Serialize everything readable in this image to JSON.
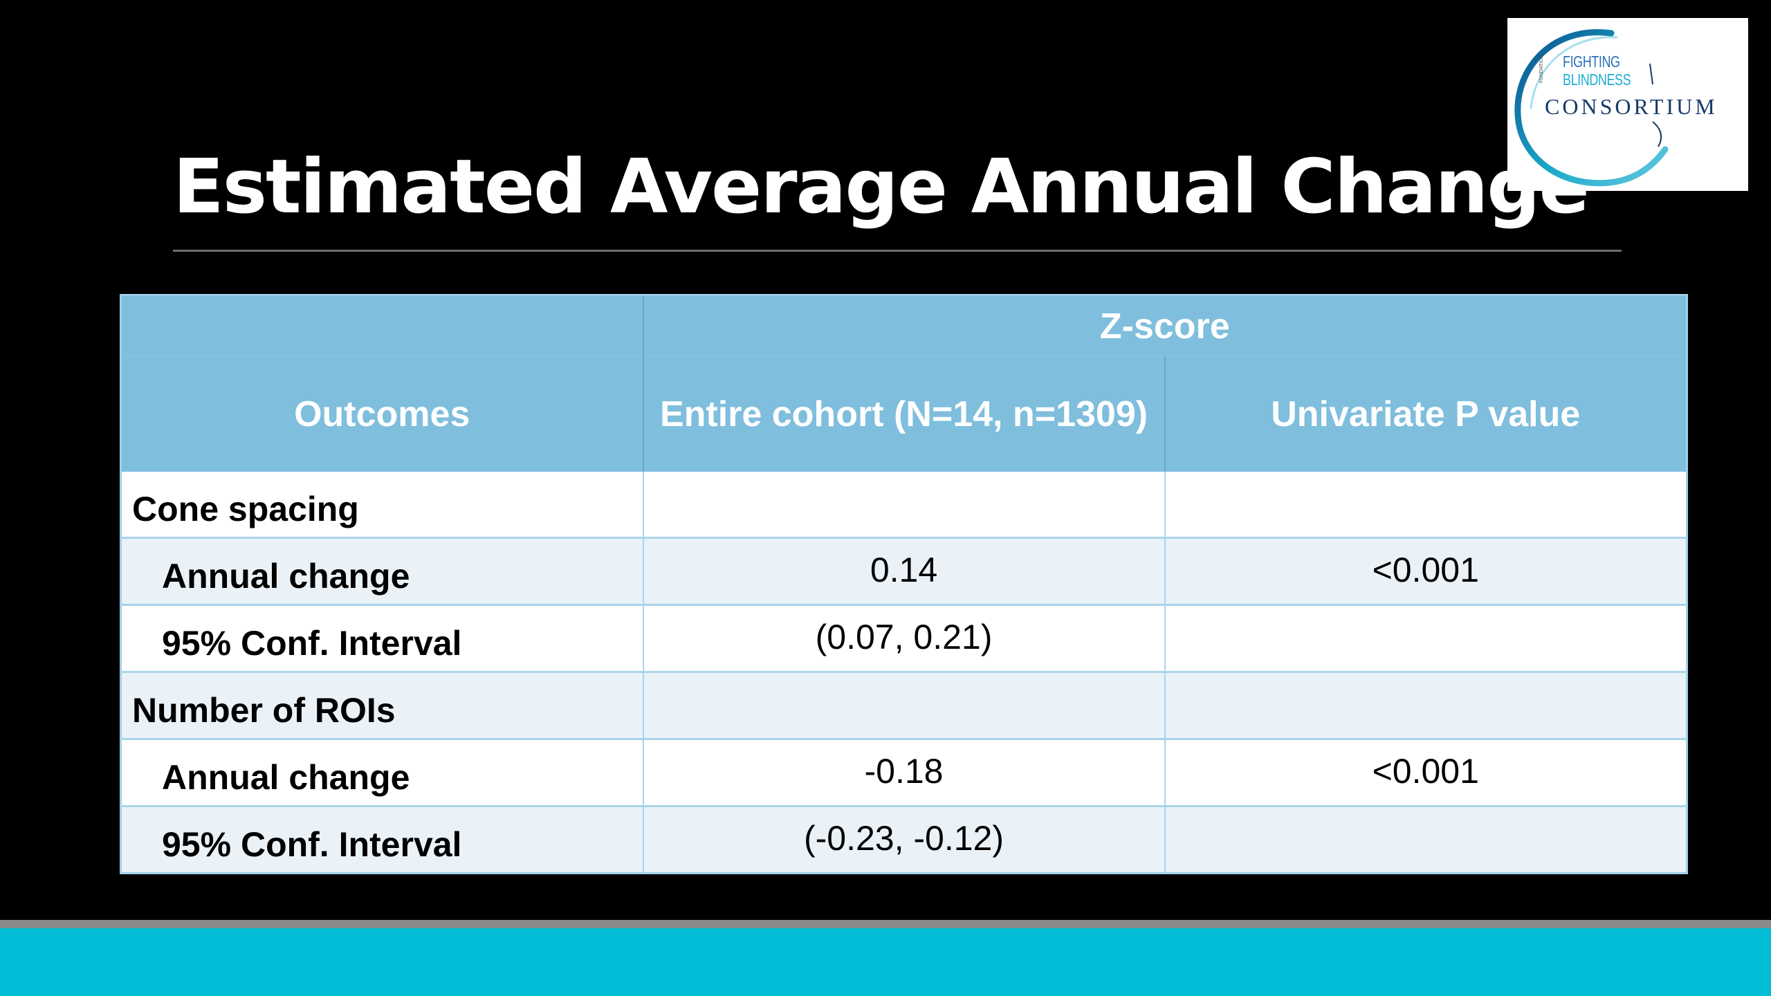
{
  "slide": {
    "title": "Estimated Average Annual Change"
  },
  "logo": {
    "side_text": "FONDATION",
    "line1": "FIGHTING",
    "line2": "BLINDNESS",
    "line3": "CONSORTIUM"
  },
  "table": {
    "group_header": "Z-score",
    "columns": [
      "Outcomes",
      "Entire cohort (N=14, n=1309)",
      "Univariate P value"
    ],
    "rows": [
      {
        "label": "Cone spacing",
        "value": "",
        "p": ""
      },
      {
        "label": "Annual change",
        "value": "0.14",
        "p": "<0.001"
      },
      {
        "label": "95% Conf. Interval",
        "value": "(0.07, 0.21)",
        "p": ""
      },
      {
        "label": "Number of ROIs",
        "value": "",
        "p": ""
      },
      {
        "label": "Annual change",
        "value": "-0.18",
        "p": "<0.001"
      },
      {
        "label": "95% Conf. Interval",
        "value": "(-0.23, -0.12)",
        "p": ""
      }
    ]
  },
  "colors": {
    "background": "#000000",
    "header_blue": "#7fbedd",
    "row_tint": "#eaf2f8",
    "footer_cyan": "#00bcd4",
    "footer_gray": "#8a8a8a"
  }
}
